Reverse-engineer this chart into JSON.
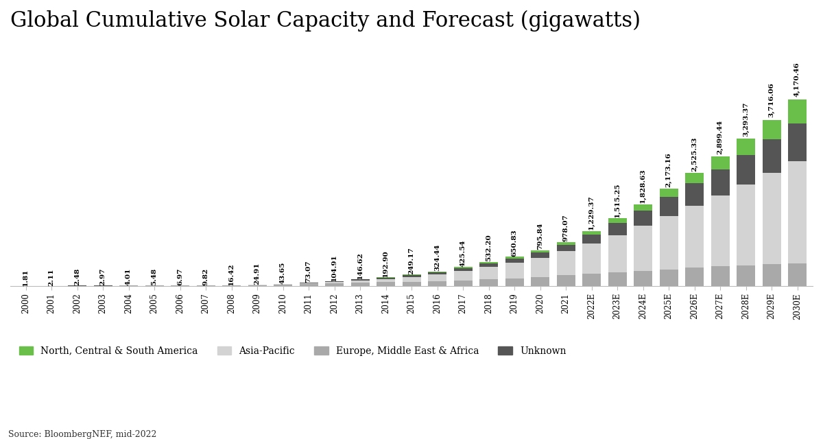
{
  "title": "Global Cumulative Solar Capacity and Forecast (gigawatts)",
  "source": "Source: BloombergNEF, mid-2022",
  "years": [
    "2000",
    "2001",
    "2002",
    "2003",
    "2004",
    "2005",
    "2006",
    "2007",
    "2008",
    "2009",
    "2010",
    "2011",
    "2012",
    "2013",
    "2014",
    "2015",
    "2016",
    "2017",
    "2018",
    "2019",
    "2020",
    "2021",
    "2022E",
    "2023E",
    "2024E",
    "2025E",
    "2026E",
    "2027E",
    "2028E",
    "2029E",
    "2030E"
  ],
  "totals": [
    1.81,
    2.11,
    2.48,
    2.97,
    4.01,
    5.48,
    6.97,
    9.82,
    16.42,
    24.91,
    43.65,
    73.07,
    104.91,
    146.62,
    192.9,
    249.17,
    324.44,
    425.54,
    532.2,
    650.83,
    795.84,
    978.07,
    1229.37,
    1515.25,
    1828.63,
    2173.16,
    2525.33,
    2899.44,
    3293.37,
    3716.06,
    4170.46
  ],
  "emea": [
    1.0,
    1.16,
    1.36,
    1.65,
    2.29,
    3.3,
    4.27,
    6.31,
    11.2,
    17.0,
    28.4,
    43.9,
    57.8,
    73.4,
    81.2,
    89.9,
    100.8,
    119.3,
    143.9,
    169.3,
    199.1,
    234.8,
    270.0,
    303.0,
    335.0,
    369.3,
    404.0,
    435.0,
    460.0,
    483.0,
    501.0
  ],
  "apac": [
    0.36,
    0.42,
    0.5,
    0.59,
    0.8,
    0.99,
    1.19,
    1.47,
    1.97,
    2.99,
    6.55,
    14.6,
    26.3,
    44.0,
    73.4,
    109.7,
    155.9,
    217.1,
    276.8,
    344.8,
    429.9,
    537.6,
    676.5,
    834.0,
    1004.8,
    1194.7,
    1388.5,
    1594.0,
    1811.0,
    2044.0,
    2293.0
  ],
  "ncsa": [
    0.14,
    0.17,
    0.17,
    0.18,
    0.2,
    0.22,
    0.28,
    0.29,
    0.3,
    0.34,
    0.87,
    1.64,
    3.12,
    5.22,
    7.3,
    10.0,
    16.2,
    23.9,
    28.7,
    37.3,
    46.8,
    60.1,
    79.0,
    104.0,
    141.0,
    187.0,
    232.0,
    289.0,
    361.0,
    440.0,
    532.0
  ],
  "unknown": [
    0.31,
    0.36,
    0.45,
    0.55,
    0.72,
    0.97,
    1.23,
    1.75,
    2.95,
    4.58,
    7.83,
    12.93,
    17.69,
    24.0,
    31.0,
    39.57,
    51.54,
    65.24,
    82.8,
    99.43,
    120.04,
    145.57,
    203.87,
    274.25,
    347.83,
    422.16,
    500.83,
    581.44,
    661.37,
    749.06,
    844.46
  ],
  "color_ncsa": "#6abf4b",
  "color_apac": "#d3d3d3",
  "color_emea": "#a9a9a9",
  "color_unknown": "#555555",
  "legend_labels": [
    "North, Central & South America",
    "Asia-Pacific",
    "Europe, Middle East & Africa",
    "Unknown"
  ],
  "title_fontsize": 22,
  "label_fontsize": 7.5,
  "tick_fontsize": 8.5,
  "bar_width": 0.72,
  "background_color": "#ffffff"
}
